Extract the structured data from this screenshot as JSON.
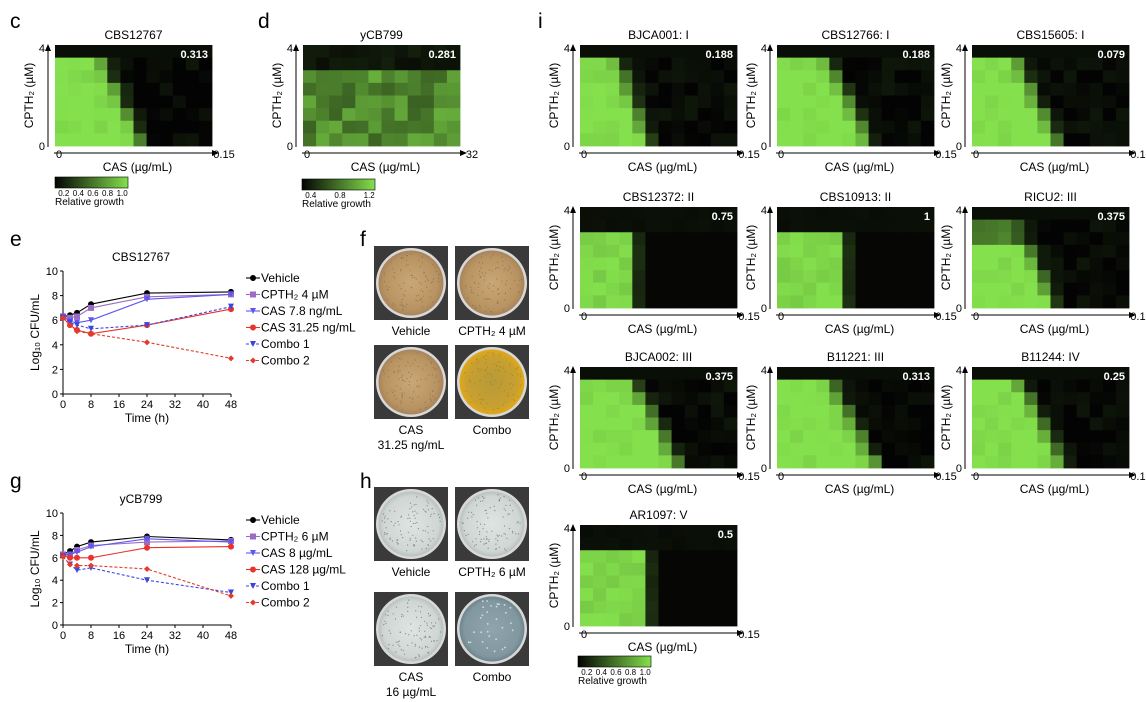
{
  "panel_letters": {
    "c": "c",
    "d": "d",
    "e": "e",
    "f": "f",
    "g": "g",
    "h": "h",
    "i": "i"
  },
  "colors": {
    "grow": "#84e04c",
    "dark": "#030303",
    "vehicle": "#000000",
    "cpth": "#9b6cc4",
    "cas_low": "#5f57f0",
    "cas_high": "#e8332c",
    "combo1": "#3b46e0",
    "combo2": "#e23b2b"
  },
  "chart_data": [
    {
      "type": "heatmap",
      "id": "c",
      "title": "CBS12767",
      "xlabel": "CAS (µg/mL)",
      "ylabel": "CPTH₂ (µM)",
      "x_ticks": [
        "0",
        "0.15"
      ],
      "y_ticks": [
        "4",
        "0"
      ],
      "value_label": "0.313",
      "mode": "tri",
      "params": {
        "border": 6.3,
        "softness": 0.7
      }
    },
    {
      "type": "heatmap",
      "id": "d",
      "title": "yCB799",
      "xlabel": "CAS (µg/mL)",
      "ylabel": "CPTH₂ (µM)",
      "x_ticks": [
        "0",
        "32"
      ],
      "y_ticks": [
        "4",
        "0"
      ],
      "value_label": "0.281",
      "mode": "band",
      "params": {
        "top_dark_rows": 2
      }
    },
    {
      "type": "heatmap",
      "id": "i1",
      "title": "BJCA001: I",
      "xlabel": "CAS (µg/mL)",
      "ylabel": "CPTH₂ (µM)",
      "x_ticks": [
        "0",
        "0.15"
      ],
      "y_ticks": [
        "4",
        "0"
      ],
      "value_label": "0.188",
      "mode": "tri",
      "params": {
        "border": 5.0,
        "softness": 0.6
      }
    },
    {
      "type": "heatmap",
      "id": "i2",
      "title": "CBS12766: I",
      "xlabel": "CAS (µg/mL)",
      "ylabel": "CPTH₂ (µM)",
      "x_ticks": [
        "0",
        "0.15"
      ],
      "y_ticks": [
        "4",
        "0"
      ],
      "value_label": "0.188",
      "mode": "tri",
      "params": {
        "border": 6.8,
        "softness": 0.7
      }
    },
    {
      "type": "heatmap",
      "id": "i3",
      "title": "CBS15605: I",
      "xlabel": "CAS (µg/mL)",
      "ylabel": "CPTH₂ (µM)",
      "x_ticks": [
        "0",
        "0.15"
      ],
      "y_ticks": [
        "4",
        "0"
      ],
      "value_label": "0.079",
      "mode": "tri",
      "params": {
        "border": 6.2,
        "softness": 0.6
      }
    },
    {
      "type": "heatmap",
      "id": "i4",
      "title": "CBS12372: II",
      "xlabel": "CAS (µg/mL)",
      "ylabel": "CPTH₂ (µM)",
      "x_ticks": [
        "0",
        "0.15"
      ],
      "y_ticks": [
        "4",
        "0"
      ],
      "value_label": "0.75",
      "mode": "rect",
      "params": {
        "cols": 4,
        "top_dark_rows": 2
      }
    },
    {
      "type": "heatmap",
      "id": "i5",
      "title": "CBS10913: II",
      "xlabel": "CAS (µg/mL)",
      "ylabel": "CPTH₂ (µM)",
      "x_ticks": [
        "0",
        "0.15"
      ],
      "y_ticks": [
        "4",
        "0"
      ],
      "value_label": "1",
      "mode": "rect",
      "params": {
        "cols": 5,
        "top_dark_rows": 2
      }
    },
    {
      "type": "heatmap",
      "id": "i6",
      "title": "RICU2: III",
      "xlabel": "CAS (µg/mL)",
      "ylabel": "CPTH₂ (µM)",
      "x_ticks": [
        "0",
        "0.15"
      ],
      "y_ticks": [
        "4",
        "0"
      ],
      "value_label": "0.375",
      "mode": "tri",
      "params": {
        "border": 6.0,
        "softness": 0.9,
        "top_dim": true
      }
    },
    {
      "type": "heatmap",
      "id": "i7",
      "title": "BJCA002: III",
      "xlabel": "CAS (µg/mL)",
      "ylabel": "CPTH₂ (µM)",
      "x_ticks": [
        "0",
        "0.15"
      ],
      "y_ticks": [
        "4",
        "0"
      ],
      "value_label": "0.375",
      "mode": "tri",
      "params": {
        "border": 7.2,
        "softness": 0.7
      }
    },
    {
      "type": "heatmap",
      "id": "i8",
      "title": "B11221: III",
      "xlabel": "CAS (µg/mL)",
      "ylabel": "CPTH₂ (µM)",
      "x_ticks": [
        "0",
        "0.15"
      ],
      "y_ticks": [
        "4",
        "0"
      ],
      "value_label": "0.313",
      "mode": "tri",
      "params": {
        "border": 7.3,
        "softness": 0.7
      }
    },
    {
      "type": "heatmap",
      "id": "i9",
      "title": "B11244: IV",
      "xlabel": "CAS (µg/mL)",
      "ylabel": "CPTH₂ (µM)",
      "x_ticks": [
        "0",
        "0.15"
      ],
      "y_ticks": [
        "4",
        "0"
      ],
      "value_label": "0.25",
      "mode": "tri",
      "params": {
        "border": 6.6,
        "softness": 0.7
      }
    },
    {
      "type": "heatmap",
      "id": "i10",
      "title": "AR1097: V",
      "xlabel": "CAS (µg/mL)",
      "ylabel": "CPTH₂ (µM)",
      "x_ticks": [
        "0",
        "0.15"
      ],
      "y_ticks": [
        "4",
        "0"
      ],
      "value_label": "0.5",
      "mode": "rect",
      "params": {
        "cols": 5,
        "top_dark_rows": 2
      }
    },
    {
      "type": "line",
      "id": "e",
      "title": "CBS12767",
      "xlabel": "Time (h)",
      "ylabel": "Log₁₀ CFU/mL",
      "xlim": [
        0,
        48
      ],
      "ylim": [
        0,
        10
      ],
      "x_ticks": [
        0,
        8,
        16,
        24,
        32,
        40,
        48
      ],
      "y_ticks": [
        0,
        2,
        4,
        6,
        8,
        10
      ],
      "series": [
        {
          "name": "Vehicle",
          "color": "#000000",
          "marker": "circle",
          "dashed": false,
          "x": [
            0,
            2,
            4,
            8,
            24,
            48
          ],
          "y": [
            6.3,
            6.4,
            6.6,
            7.3,
            8.2,
            8.3
          ]
        },
        {
          "name": "CPTH₂ 4 µM",
          "color": "#9b6cc4",
          "marker": "square",
          "dashed": false,
          "x": [
            0,
            2,
            4,
            8,
            24,
            48
          ],
          "y": [
            6.3,
            6.2,
            6.3,
            7.0,
            7.9,
            8.1
          ]
        },
        {
          "name": "CAS 7.8 ng/mL",
          "color": "#5f57f0",
          "marker": "tri-down",
          "dashed": false,
          "x": [
            0,
            2,
            4,
            8,
            24,
            48
          ],
          "y": [
            6.3,
            5.9,
            5.8,
            6.0,
            7.7,
            8.1
          ]
        },
        {
          "name": "CAS 31.25 ng/mL",
          "color": "#e8332c",
          "marker": "circle",
          "dashed": false,
          "x": [
            0,
            2,
            4,
            8,
            24,
            48
          ],
          "y": [
            6.2,
            5.6,
            5.2,
            4.9,
            5.6,
            6.9
          ]
        },
        {
          "name": "Combo 1",
          "color": "#3b46e0",
          "marker": "tri-down",
          "dashed": true,
          "x": [
            0,
            2,
            4,
            8,
            24,
            48
          ],
          "y": [
            6.2,
            5.8,
            5.6,
            5.3,
            5.6,
            7.1
          ]
        },
        {
          "name": "Combo 2",
          "color": "#e23b2b",
          "marker": "diamond",
          "dashed": true,
          "x": [
            0,
            2,
            4,
            8,
            24,
            48
          ],
          "y": [
            6.2,
            5.6,
            5.1,
            4.9,
            4.2,
            2.9
          ]
        }
      ]
    },
    {
      "type": "line",
      "id": "g",
      "title": "yCB799",
      "xlabel": "Time (h)",
      "ylabel": "Log₁₀ CFU/mL",
      "xlim": [
        0,
        48
      ],
      "ylim": [
        0,
        10
      ],
      "x_ticks": [
        0,
        8,
        16,
        24,
        32,
        40,
        48
      ],
      "y_ticks": [
        0,
        2,
        4,
        6,
        8,
        10
      ],
      "series": [
        {
          "name": "Vehicle",
          "color": "#000000",
          "marker": "circle",
          "dashed": false,
          "x": [
            0,
            2,
            4,
            8,
            24,
            48
          ],
          "y": [
            6.3,
            6.6,
            7.0,
            7.4,
            7.9,
            7.6
          ]
        },
        {
          "name": "CPTH₂ 6 µM",
          "color": "#9b6cc4",
          "marker": "square",
          "dashed": false,
          "x": [
            0,
            2,
            4,
            8,
            24,
            48
          ],
          "y": [
            6.3,
            6.3,
            6.7,
            7.1,
            7.4,
            7.5
          ]
        },
        {
          "name": "CAS 8 µg/mL",
          "color": "#5f57f0",
          "marker": "tri-down",
          "dashed": false,
          "x": [
            0,
            2,
            4,
            8,
            24,
            48
          ],
          "y": [
            6.2,
            6.3,
            6.5,
            7.0,
            7.7,
            7.4
          ]
        },
        {
          "name": "CAS 128 µg/mL",
          "color": "#e8332c",
          "marker": "circle",
          "dashed": false,
          "x": [
            0,
            2,
            4,
            8,
            24,
            48
          ],
          "y": [
            6.2,
            6.0,
            6.0,
            6.0,
            6.9,
            7.0
          ]
        },
        {
          "name": "Combo 1",
          "color": "#3b46e0",
          "marker": "tri-down",
          "dashed": true,
          "x": [
            0,
            2,
            4,
            8,
            24,
            48
          ],
          "y": [
            6.1,
            5.4,
            4.9,
            5.1,
            4.0,
            2.9
          ]
        },
        {
          "name": "Combo 2",
          "color": "#e23b2b",
          "marker": "diamond",
          "dashed": true,
          "x": [
            0,
            2,
            4,
            8,
            24,
            48
          ],
          "y": [
            6.1,
            5.4,
            5.3,
            5.3,
            5.0,
            2.6
          ]
        }
      ]
    }
  ],
  "colorbar_c": {
    "ticks": [
      "0.2",
      "0.4",
      "0.6",
      "0.8",
      "1.0"
    ],
    "label": "Relative growth"
  },
  "colorbar_d": {
    "ticks": [
      "0.4",
      "0.8",
      "1.2"
    ],
    "label": "Relative growth"
  },
  "colorbar_i": {
    "ticks": [
      "0.2",
      "0.4",
      "0.6",
      "0.8",
      "1.0"
    ],
    "label": "Relative growth"
  },
  "plates_f": [
    {
      "label": "Vehicle",
      "style": "tan"
    },
    {
      "label": "CPTH₂ 4 µM",
      "style": "tan"
    },
    {
      "label": "CAS",
      "sublabel": "31.25 ng/mL",
      "style": "tan"
    },
    {
      "label": "Combo",
      "style": "amber"
    }
  ],
  "plates_h": [
    {
      "label": "Vehicle",
      "style": "grey"
    },
    {
      "label": "CPTH₂ 6 µM",
      "style": "grey"
    },
    {
      "label": "CAS",
      "sublabel": "16 µg/mL",
      "style": "grey"
    },
    {
      "label": "Combo",
      "style": "clear"
    }
  ]
}
